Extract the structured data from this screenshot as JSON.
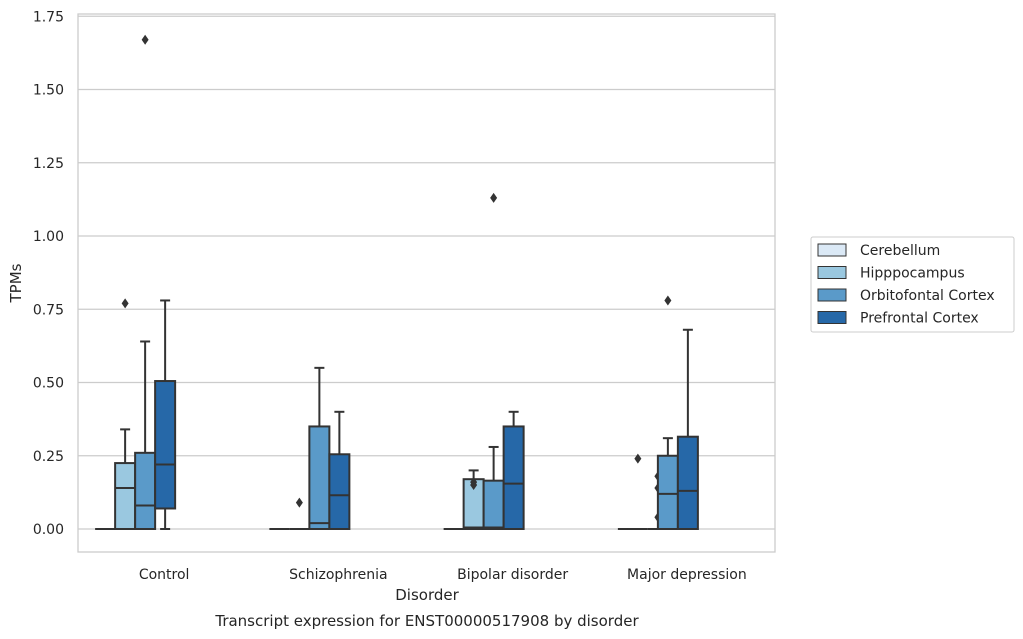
{
  "chart_data": {
    "type": "box",
    "title": "",
    "xlabel": "Disorder",
    "ylabel": "TPMs",
    "caption": "Transcript expression for ENST00000517908 by disorder",
    "ylim": [
      -0.08,
      1.76
    ],
    "yticks": [
      0.0,
      0.25,
      0.5,
      0.75,
      1.0,
      1.25,
      1.5,
      1.75
    ],
    "ytick_labels": [
      "0.00",
      "0.25",
      "0.50",
      "0.75",
      "1.00",
      "1.25",
      "1.50",
      "1.75"
    ],
    "grid": "horizontal",
    "legend_position": "right",
    "categories": [
      "Control",
      "Schizophrenia",
      "Bipolar disorder",
      "Major depression"
    ],
    "series": [
      {
        "name": "Cerebellum",
        "color": "#dbe9f6",
        "boxes": [
          {
            "whislo": 0,
            "q1": 0,
            "med": 0,
            "q3": 0,
            "whishi": 0,
            "fliers": []
          },
          {
            "whislo": 0,
            "q1": 0,
            "med": 0,
            "q3": 0,
            "whishi": 0,
            "fliers": []
          },
          {
            "whislo": 0,
            "q1": 0,
            "med": 0,
            "q3": 0,
            "whishi": 0,
            "fliers": []
          },
          {
            "whislo": 0,
            "q1": 0,
            "med": 0,
            "q3": 0,
            "whishi": 0,
            "fliers": []
          }
        ]
      },
      {
        "name": "Hipppocampus",
        "color": "#9ac8e0",
        "boxes": [
          {
            "whislo": 0,
            "q1": 0,
            "med": 0.14,
            "q3": 0.225,
            "whishi": 0.34,
            "fliers": [
              0.77
            ]
          },
          {
            "whislo": 0,
            "q1": 0,
            "med": 0,
            "q3": 0,
            "whishi": 0,
            "fliers": [
              0.09
            ]
          },
          {
            "whislo": 0,
            "q1": 0,
            "med": 0.005,
            "q3": 0.17,
            "whishi": 0.2,
            "fliers": [
              0.15,
              0.16
            ]
          },
          {
            "whislo": 0,
            "q1": 0,
            "med": 0,
            "q3": 0,
            "whishi": 0,
            "fliers": [
              0.24
            ]
          }
        ]
      },
      {
        "name": "Orbitofontal Cortex",
        "color": "#5a9ac9",
        "boxes": [
          {
            "whislo": 0,
            "q1": 0,
            "med": 0.08,
            "q3": 0.26,
            "whishi": 0.64,
            "fliers": [
              1.67
            ]
          },
          {
            "whislo": 0,
            "q1": 0,
            "med": 0.02,
            "q3": 0.35,
            "whishi": 0.55,
            "fliers": []
          },
          {
            "whislo": 0,
            "q1": 0,
            "med": 0.005,
            "q3": 0.165,
            "whishi": 0.28,
            "fliers": [
              1.13
            ]
          },
          {
            "whislo": 0,
            "q1": 0,
            "med": 0,
            "q3": 0,
            "whishi": 0,
            "fliers": [
              0.04,
              0.14,
              0.18
            ]
          }
        ]
      },
      {
        "name": "Prefrontal Cortex",
        "color": "#2668a8",
        "boxes": [
          {
            "whislo": 0,
            "q1": 0.07,
            "med": 0.22,
            "q3": 0.505,
            "whishi": 0.78,
            "fliers": []
          },
          {
            "whislo": 0,
            "q1": 0,
            "med": 0.115,
            "q3": 0.255,
            "whishi": 0.4,
            "fliers": []
          },
          {
            "whislo": 0,
            "q1": 0,
            "med": 0.155,
            "q3": 0.35,
            "whishi": 0.4,
            "fliers": []
          },
          {
            "whislo": 0,
            "q1": 0,
            "med": 0.13,
            "q3": 0.315,
            "whishi": 0.68,
            "fliers": []
          }
        ]
      }
    ],
    "extra_series": [
      {
        "category": "Major depression",
        "after_series": "Orbitofontal Cortex",
        "box": {
          "whislo": 0,
          "q1": 0,
          "med": 0.12,
          "q3": 0.25,
          "whishi": 0.31,
          "fliers": [
            0.78
          ]
        }
      }
    ]
  }
}
